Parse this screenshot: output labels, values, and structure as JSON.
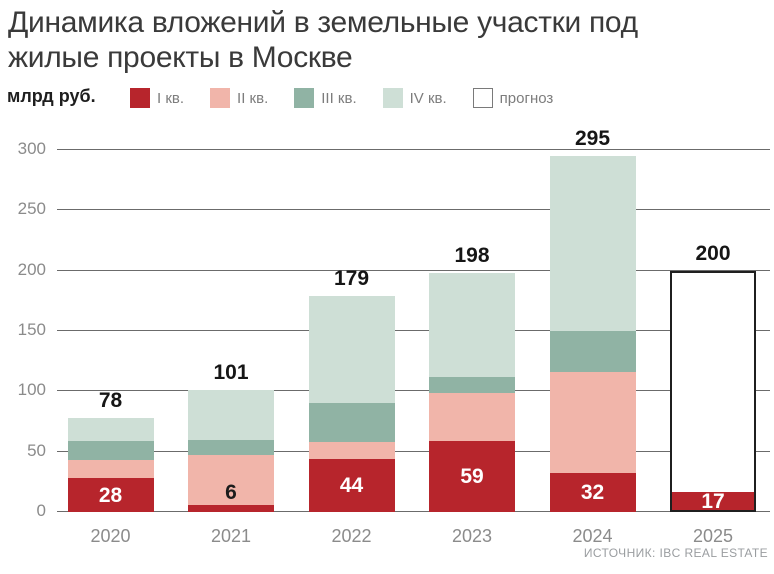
{
  "chart_data": {
    "type": "bar",
    "stacked": true,
    "title": "Динамика вложений в земельные участки под жилые проекты в Москве",
    "title_lines": [
      "Динамика вложений в земельные участки под",
      "жилые проекты в Москве"
    ],
    "unit_label": "млрд руб.",
    "source": "ИСТОЧНИК: IBC REAL ESTATE",
    "categories": [
      "2020",
      "2021",
      "2022",
      "2023",
      "2024",
      "2025"
    ],
    "series": [
      {
        "name": "I кв.",
        "key": "q1",
        "color": "#b7252c",
        "values": [
          28,
          6,
          44,
          59,
          32,
          17
        ]
      },
      {
        "name": "II кв.",
        "key": "q2",
        "color": "#f1b5aa",
        "values": [
          15,
          41,
          14,
          40,
          84,
          null
        ]
      },
      {
        "name": "III кв.",
        "key": "q3",
        "color": "#90b3a4",
        "values": [
          16,
          13,
          32,
          13,
          34,
          null
        ]
      },
      {
        "name": "IV кв.",
        "key": "q4",
        "color": "#cedfd6",
        "values": [
          19,
          41,
          89,
          86,
          145,
          null
        ]
      },
      {
        "name": "прогноз",
        "key": "forecast",
        "color": "#ffffff",
        "values": [
          null,
          null,
          null,
          null,
          null,
          183
        ]
      }
    ],
    "totals": [
      78,
      101,
      179,
      198,
      295,
      200
    ],
    "bar_labels": [
      28,
      6,
      44,
      59,
      32,
      17
    ],
    "forecast_index": 5,
    "ylim": [
      0,
      300
    ],
    "yticks": [
      0,
      50,
      100,
      150,
      200,
      250,
      300
    ],
    "grid": true,
    "legend_position": "top"
  }
}
